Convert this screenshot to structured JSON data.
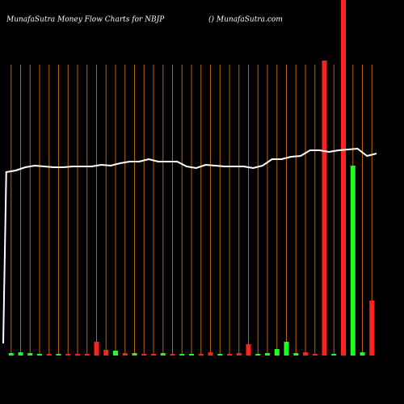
{
  "chart_data": {
    "type": "bar",
    "title": "MunafaSutra  Money Flow  Charts for NBJP",
    "subtitle": "() MunafaSutra.com",
    "ylim": [
      0,
      440
    ],
    "grid_color": "#b8650a",
    "bars": {
      "values": [
        3,
        3,
        4,
        3,
        2,
        2,
        2,
        2,
        2,
        2,
        17,
        7,
        6,
        3,
        3,
        2,
        2,
        3,
        2,
        2,
        2,
        2,
        4,
        2,
        2,
        3,
        14,
        2,
        3,
        8,
        17,
        3,
        4,
        2,
        365,
        2,
        460,
        235,
        4,
        68
      ],
      "colors": [
        "#ff2020",
        "#20ff20",
        "#20ff20",
        "#20ff20",
        "#20ff20",
        "#ff2020",
        "#20ff20",
        "#ff2020",
        "#ff2020",
        "#ff2020",
        "#ff2020",
        "#ff2020",
        "#20ff20",
        "#ff2020",
        "#20ff20",
        "#ff2020",
        "#ff2020",
        "#20ff20",
        "#ff2020",
        "#20ff20",
        "#20ff20",
        "#ff2020",
        "#ff2020",
        "#20ff20",
        "#ff2020",
        "#ff2020",
        "#ff2020",
        "#20ff20",
        "#20ff20",
        "#20ff20",
        "#20ff20",
        "#20ff20",
        "#ff2020",
        "#ff2020",
        "#ff2020",
        "#20ff20",
        "#ff2020",
        "#20ff20",
        "#20ff20",
        "#ff2020"
      ]
    },
    "line": {
      "color": "#ffffff",
      "values": [
        15,
        227,
        229,
        233,
        235,
        234,
        233,
        233,
        234,
        234,
        234,
        236,
        235,
        238,
        240,
        240,
        243,
        240,
        240,
        240,
        234,
        232,
        236,
        235,
        234,
        234,
        234,
        232,
        235,
        243,
        243,
        246,
        247,
        254,
        254,
        252,
        254,
        255,
        256,
        247,
        250
      ]
    }
  }
}
